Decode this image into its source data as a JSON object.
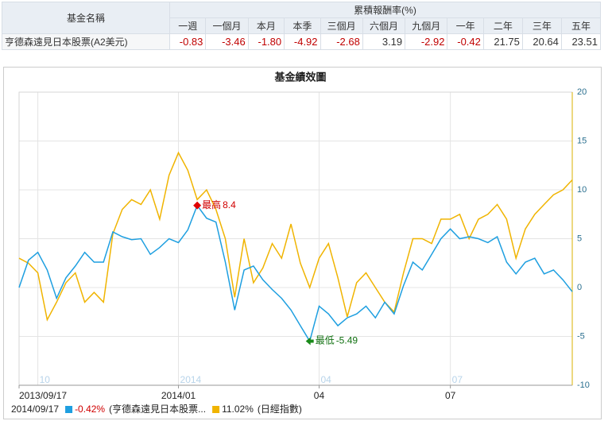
{
  "table": {
    "name_header": "基金名稱",
    "group_header": "累積報酬率(%)",
    "columns": [
      "一週",
      "一個月",
      "本月",
      "本季",
      "三個月",
      "六個月",
      "九個月",
      "一年",
      "二年",
      "三年",
      "五年"
    ],
    "rows": [
      {
        "name": "亨德森遠見日本股票(A2美元)",
        "cells": [
          "-0.83",
          "-3.46",
          "-1.80",
          "-4.92",
          "-2.68",
          "3.19",
          "-2.92",
          "-0.42",
          "21.75",
          "20.64",
          "23.51"
        ]
      }
    ]
  },
  "chart_data": {
    "type": "line",
    "title": "基金績效圖",
    "categories": [
      "2013/09/17",
      null,
      null,
      null,
      null,
      null,
      null,
      null,
      null,
      null,
      null,
      null,
      null,
      null,
      null,
      null,
      null,
      "2014/01",
      null,
      null,
      null,
      null,
      null,
      null,
      null,
      null,
      null,
      null,
      null,
      null,
      null,
      null,
      "04",
      null,
      null,
      null,
      null,
      null,
      null,
      null,
      null,
      null,
      null,
      null,
      null,
      null,
      "07",
      null,
      null,
      null,
      null,
      null,
      null,
      null,
      null,
      null,
      null,
      null,
      null,
      null
    ],
    "minor_categories": [
      null,
      null,
      "10",
      null,
      null,
      null,
      null,
      null,
      null,
      null,
      null,
      null,
      null,
      null,
      null,
      null,
      null,
      "2014",
      null,
      null,
      null,
      null,
      null,
      null,
      null,
      null,
      null,
      null,
      null,
      null,
      null,
      null,
      "04",
      null,
      null,
      null,
      null,
      null,
      null,
      null,
      null,
      null,
      null,
      null,
      null,
      null,
      "07",
      null,
      null,
      null,
      null,
      null,
      null,
      null,
      null,
      null,
      null,
      null,
      null,
      null
    ],
    "ylim": [
      -10,
      20
    ],
    "yticks": [
      -10,
      -5,
      0,
      5,
      10,
      15,
      20
    ],
    "yaxis_side": "right",
    "grid": true,
    "legend_date": "2014/09/17",
    "max_label": "最高",
    "min_label": "最低",
    "series": [
      {
        "name": "(亨德森遠見日本股票...",
        "legend_value": "-0.42%",
        "color": "#1e9fe0",
        "values": [
          0,
          2.8,
          3.6,
          1.8,
          -1.1,
          1,
          2.2,
          3.6,
          2.6,
          2.6,
          5.7,
          5.2,
          4.9,
          5,
          3.4,
          4.1,
          5,
          4.6,
          5.9,
          8.4,
          7.1,
          6.7,
          2.6,
          -2.3,
          1.8,
          2.2,
          0.8,
          -0.2,
          -1.1,
          -2.3,
          -3.9,
          -5.49,
          -1.9,
          -2.7,
          -3.9,
          -3.1,
          -2.7,
          -1.9,
          -3.1,
          -1.5,
          -2.7,
          0.2,
          2.6,
          1.8,
          3.4,
          5,
          6,
          5,
          5.2,
          5,
          4.6,
          5.2,
          2.6,
          1.4,
          2.6,
          3,
          1.4,
          1.8,
          0.8,
          -0.42
        ]
      },
      {
        "name": "(日經指數)",
        "legend_value": "11.02%",
        "color": "#f0b400",
        "values": [
          3,
          2.5,
          1.5,
          -3.3,
          -1.5,
          0.5,
          1.5,
          -1.5,
          -0.5,
          -1.5,
          5.5,
          8,
          9,
          8.5,
          10,
          7,
          11.5,
          13.8,
          12,
          9,
          10,
          8,
          5,
          -1,
          5,
          0.5,
          2,
          4.5,
          3,
          6.5,
          2.5,
          0,
          3,
          4.5,
          1,
          -3,
          0.5,
          1.5,
          0,
          -1.5,
          -2.5,
          1.5,
          5,
          5,
          4.5,
          7,
          7,
          7.5,
          5,
          7,
          7.5,
          8.5,
          7,
          3,
          6,
          7.5,
          8.5,
          9.5,
          10,
          11.02
        ]
      }
    ]
  }
}
